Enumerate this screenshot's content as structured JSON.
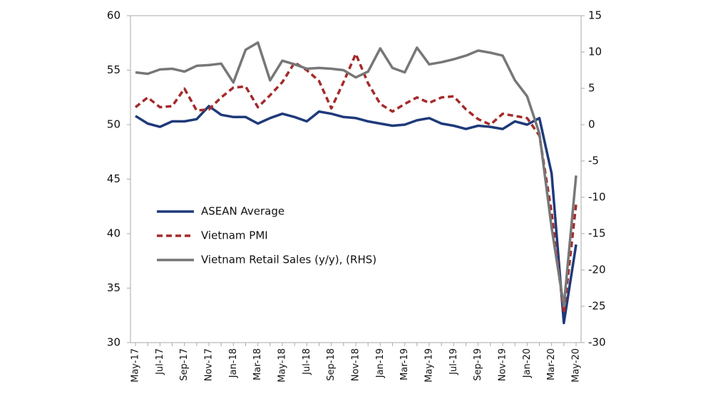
{
  "chart_data": {
    "type": "line",
    "categories": [
      "May-17",
      null,
      "Jul-17",
      null,
      "Sep-17",
      null,
      "Nov-17",
      null,
      "Jan-18",
      null,
      "Mar-18",
      null,
      "May-18",
      null,
      "Jul-18",
      null,
      "Sep-18",
      null,
      "Nov-18",
      null,
      "Jan-19",
      null,
      "Mar-19",
      null,
      "May-19",
      null,
      "Jul-19",
      null,
      "Sep-19",
      null,
      "Nov-19",
      null,
      "Jan-20",
      null,
      "Mar-20",
      null,
      "May-20"
    ],
    "series": [
      {
        "name": "ASEAN Average",
        "color": "#1f3a7a",
        "dashed": false,
        "values": [
          50.8,
          50.1,
          49.8,
          50.3,
          50.3,
          50.5,
          51.7,
          50.9,
          50.7,
          50.7,
          50.1,
          50.6,
          51.0,
          50.7,
          50.3,
          51.2,
          51.0,
          50.7,
          50.6,
          50.3,
          50.1,
          49.9,
          50.0,
          50.4,
          50.6,
          50.1,
          49.9,
          49.6,
          49.9,
          49.8,
          49.6,
          50.3,
          50.0,
          50.6,
          45.5,
          31.8,
          39.0
        ]
      },
      {
        "name": "Vietnam PMI",
        "color": "#a52a2a",
        "dashed": true,
        "values": [
          51.6,
          52.5,
          51.6,
          51.7,
          53.3,
          51.3,
          51.4,
          52.5,
          53.4,
          53.5,
          51.6,
          52.7,
          53.9,
          55.7,
          55.0,
          54.0,
          51.5,
          53.9,
          56.5,
          53.8,
          51.9,
          51.2,
          51.9,
          52.5,
          52.0,
          52.5,
          52.6,
          51.4,
          50.5,
          50.0,
          51.0,
          50.8,
          50.6,
          49.0,
          41.9,
          32.7,
          42.7
        ]
      },
      {
        "name": "Vietnam Retail Sales (y/y), (RHS)",
        "color": "#777777",
        "dashed": false,
        "axis": "y2",
        "values": [
          7.2,
          7.0,
          7.6,
          7.7,
          7.3,
          8.1,
          8.2,
          8.4,
          5.8,
          10.3,
          11.3,
          6.1,
          8.8,
          8.3,
          7.7,
          7.8,
          7.7,
          7.5,
          6.5,
          7.3,
          10.5,
          7.8,
          7.2,
          10.6,
          8.3,
          8.6,
          9.0,
          9.5,
          10.2,
          9.9,
          9.5,
          6.1,
          3.9,
          -1.2,
          -14.2,
          -25.0,
          -7.0
        ]
      }
    ],
    "ylim": [
      30,
      60
    ],
    "yticks": [
      30,
      35,
      40,
      45,
      50,
      55,
      60
    ],
    "y2lim": [
      -30,
      15
    ],
    "y2ticks": [
      -30,
      -25,
      -20,
      -15,
      -10,
      -5,
      0,
      5,
      10,
      15
    ],
    "grid": false
  }
}
